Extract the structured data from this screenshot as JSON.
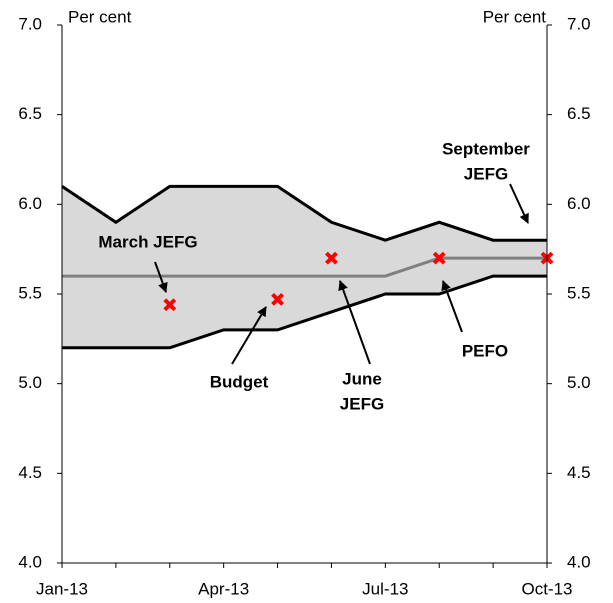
{
  "chart_data": {
    "type": "line",
    "y_label_left": "Per cent",
    "y_label_right": "Per cent",
    "categories": [
      "Jan-13",
      null,
      null,
      "Apr-13",
      null,
      null,
      "Jul-13",
      null,
      null,
      "Oct-13"
    ],
    "band_color": "#d9d9d9",
    "series": [
      {
        "color": "#000000",
        "values": [
          6.1,
          5.9,
          6.1,
          6.1,
          6.1,
          5.9,
          5.8,
          5.9,
          5.8,
          5.8
        ]
      },
      {
        "color": "#000000",
        "values": [
          5.2,
          5.2,
          5.2,
          5.3,
          5.3,
          5.4,
          5.5,
          5.5,
          5.6,
          5.6
        ]
      },
      {
        "color": "#808080",
        "values": [
          5.6,
          5.6,
          5.6,
          5.6,
          5.6,
          5.6,
          5.6,
          5.7,
          5.7,
          5.7
        ]
      },
      {
        "color": "#ff0000",
        "marker": "x",
        "values": [
          null,
          null,
          5.44,
          null,
          5.47,
          5.7,
          null,
          5.7,
          null,
          5.7
        ]
      }
    ],
    "annotations": [
      {
        "lines": [
          "March JEFG"
        ]
      },
      {
        "lines": [
          "Budget"
        ]
      },
      {
        "lines": [
          "June",
          "JEFG"
        ]
      },
      {
        "lines": [
          "PEFO"
        ]
      },
      {
        "lines": [
          "September",
          "JEFG"
        ]
      }
    ],
    "ylim": [
      4,
      7
    ],
    "yticks": [
      {
        "value": 4,
        "label": "4.0"
      },
      4.5,
      {
        "value": 5,
        "label": "5.0"
      },
      5.5,
      {
        "value": 6,
        "label": "6.0"
      },
      6.5,
      {
        "value": 7,
        "label": "7.0"
      }
    ],
    "y2lim": [
      4,
      7
    ],
    "y2ticks": [
      {
        "value": 4,
        "label": "4.0"
      },
      4.5,
      {
        "value": 5,
        "label": "5.0"
      },
      5.5,
      {
        "value": 6,
        "label": "6.0"
      },
      6.5,
      {
        "value": 7,
        "label": "7.0"
      }
    ]
  }
}
